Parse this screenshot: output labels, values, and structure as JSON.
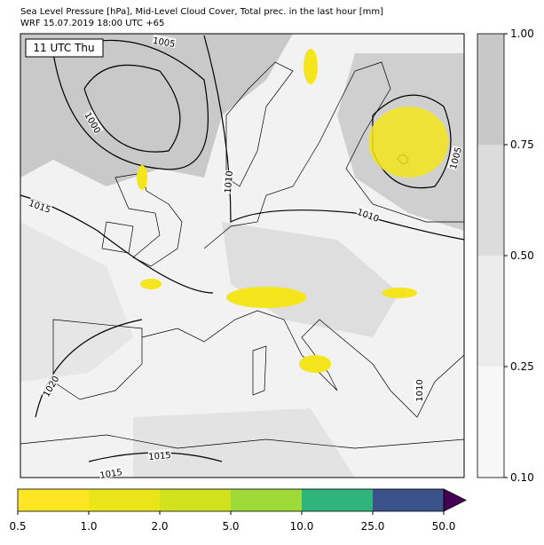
{
  "header": {
    "title": "Sea Level Pressure [hPa], Mid-Level Cloud Cover, Total prec. in the last hour [mm]",
    "subtitle": "WRF 15.07.2019 18:00 UTC +65"
  },
  "map": {
    "time_label": "11 UTC Thu",
    "isobar_labels": [
      "1005",
      "1000",
      "1010",
      "1015",
      "1010",
      "1005",
      "1020",
      "1010",
      "1015",
      "1015"
    ]
  },
  "cloud_colorbar": {
    "colors": [
      "#f7f7f7",
      "#ececec",
      "#dcdcdc",
      "#c8c8c8"
    ],
    "ticks": [
      {
        "value": 0.1,
        "label": "0.10"
      },
      {
        "value": 0.25,
        "label": "0.25"
      },
      {
        "value": 0.5,
        "label": "0.50"
      },
      {
        "value": 0.75,
        "label": "0.75"
      },
      {
        "value": 1.0,
        "label": "1.00"
      }
    ]
  },
  "precip_colorbar": {
    "colors": [
      "#fde725",
      "#eae51a",
      "#d1e11c",
      "#a0da39",
      "#2fb47c",
      "#3b528b",
      "#440154"
    ],
    "ticks": [
      0.5,
      {
        "value": 1.0,
        "label": "1.0"
      },
      {
        "value": 2.0,
        "label": "2.0"
      },
      {
        "value": 5.0,
        "label": "5.0"
      },
      {
        "value": 10.0,
        "label": "10.0"
      },
      {
        "value": 25.0,
        "label": "25.0"
      },
      {
        "value": 50.0,
        "label": "50.0"
      }
    ]
  }
}
